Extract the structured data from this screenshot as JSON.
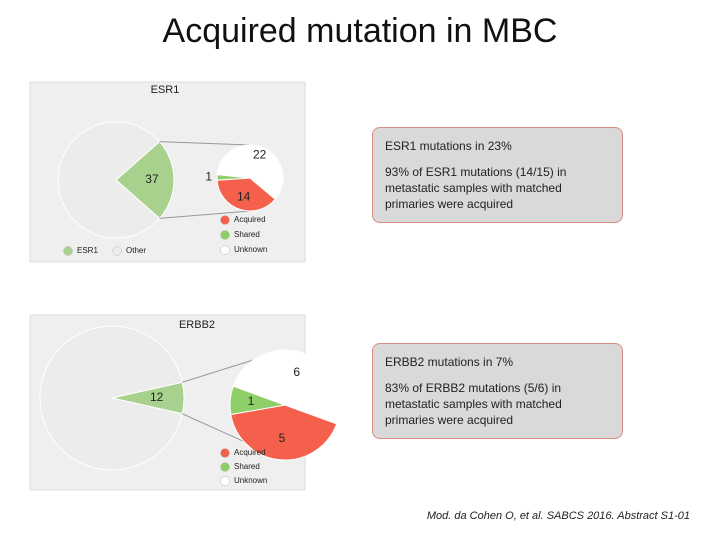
{
  "title": "Acquired mutation in MBC",
  "chart_data": [
    {
      "type": "pie",
      "title": "ESR1",
      "categories": [
        "ESR1",
        "Other"
      ],
      "values": [
        37,
        124
      ],
      "colors": [
        "#a9d18e",
        "#ececec"
      ],
      "detail": {
        "categories": [
          "Acquired",
          "Shared",
          "Unknown"
        ],
        "values": [
          14,
          1,
          22
        ],
        "colors": [
          "#f4604c",
          "#8fcf6a",
          "#ffffff"
        ]
      }
    },
    {
      "type": "pie",
      "title": "ERBB2",
      "categories": [
        null,
        null
      ],
      "values": [
        12,
        159
      ],
      "colors": [
        "#a9d18e",
        "#ececec"
      ],
      "detail": {
        "categories": [
          "Acquired",
          "Shared",
          "Unknown"
        ],
        "values": [
          5,
          1,
          6
        ],
        "colors": [
          "#f4604c",
          "#8fcf6a",
          "#ffffff"
        ]
      }
    }
  ],
  "callouts": [
    {
      "heading": "ESR1 mutations in 23%",
      "body": "93% of ESR1 mutations (14/15) in metastatic samples with matched primaries were acquired"
    },
    {
      "heading": "ERBB2 mutations in 7%",
      "body": "83% of ERBB2 mutations (5/6) in metastatic samples with matched primaries were acquired"
    }
  ],
  "citation": "Mod. da Cohen O, et al. SABCS 2016. Abstract S1-01"
}
